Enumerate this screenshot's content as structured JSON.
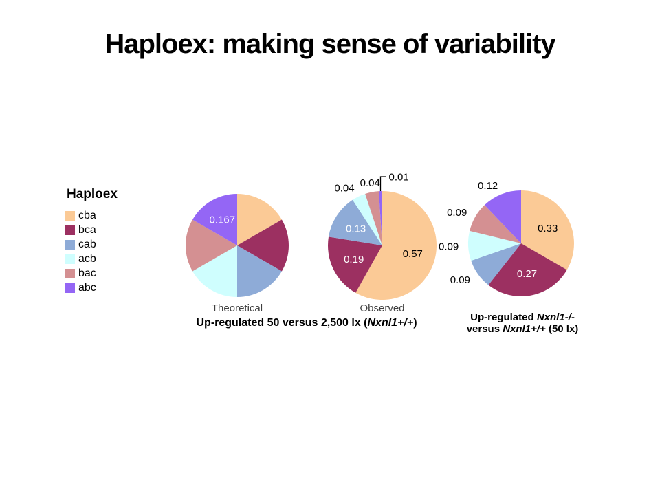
{
  "slide": {
    "title": "Haploex: making sense of variability",
    "background_color": "#ffffff"
  },
  "legend": {
    "title": "Haploex",
    "items": [
      {
        "label": "cba",
        "color": "#FBCA96"
      },
      {
        "label": "bca",
        "color": "#9C3061"
      },
      {
        "label": "cab",
        "color": "#8EABD7"
      },
      {
        "label": "acb",
        "color": "#CFFEFE"
      },
      {
        "label": "bac",
        "color": "#D49092"
      },
      {
        "label": "abc",
        "color": "#9466F5"
      }
    ]
  },
  "captions": {
    "left_group": {
      "text": "Up-regulated 50 versus 2,500 lx (Nxnl1+/+)",
      "segments": [
        {
          "t": "Up-regulated 50 versus 2,500 lx ("
        },
        {
          "t": "Nxnl1+/+",
          "i": true
        },
        {
          "t": ")"
        }
      ]
    },
    "right_group": {
      "text": "Up-regulated Nxnl1-/- versus Nxnl1+/+ (50 lx)",
      "line1_segments": [
        {
          "t": "Up-regulated "
        },
        {
          "t": "Nxnl1-/-",
          "i": true
        }
      ],
      "line2_segments": [
        {
          "t": "versus "
        },
        {
          "t": "Nxnl1+/+",
          "i": true
        },
        {
          "t": " (50 lx)"
        }
      ]
    }
  },
  "chart_data": [
    {
      "type": "pie",
      "name": "theoretical",
      "caption": "Theoretical",
      "start_angle": "12-o'clock, clockwise",
      "categories": [
        "cba",
        "bca",
        "cab",
        "acb",
        "bac",
        "abc"
      ],
      "slices": [
        {
          "category": "cba",
          "value": 0.167,
          "label": ""
        },
        {
          "category": "bca",
          "value": 0.167,
          "label": ""
        },
        {
          "category": "cab",
          "value": 0.167,
          "label": ""
        },
        {
          "category": "acb",
          "value": 0.167,
          "label": ""
        },
        {
          "category": "bac",
          "value": 0.167,
          "label": ""
        },
        {
          "category": "abc",
          "value": 0.167,
          "label": "0.167",
          "placement": "inside",
          "label_color": "#ffffff"
        }
      ]
    },
    {
      "type": "pie",
      "name": "observed",
      "caption": "Observed",
      "start_angle": "12-o'clock, clockwise",
      "categories": [
        "cba",
        "bca",
        "cab",
        "acb",
        "bac",
        "abc"
      ],
      "slices": [
        {
          "category": "cba",
          "value": 0.57,
          "label": "0.57",
          "placement": "inside",
          "label_color": "#000000"
        },
        {
          "category": "bca",
          "value": 0.19,
          "label": "0.19",
          "placement": "inside",
          "label_color": "#ffffff"
        },
        {
          "category": "cab",
          "value": 0.13,
          "label": "0.13",
          "placement": "inside",
          "label_color": "#ffffff"
        },
        {
          "category": "acb",
          "value": 0.04,
          "label": "0.04",
          "placement": "outside",
          "label_color": "#000000"
        },
        {
          "category": "bac",
          "value": 0.04,
          "label": "0.04",
          "placement": "outside",
          "label_color": "#000000"
        },
        {
          "category": "abc",
          "value": 0.01,
          "label": "0.01",
          "placement": "leader",
          "label_color": "#000000"
        }
      ]
    },
    {
      "type": "pie",
      "name": "nxnl1-ko-vs-wt",
      "caption": "",
      "start_angle": "12-o'clock, clockwise",
      "categories": [
        "cba",
        "bca",
        "cab",
        "acb",
        "bac",
        "abc"
      ],
      "slices": [
        {
          "category": "cba",
          "value": 0.33,
          "label": "0.33",
          "placement": "inside",
          "label_color": "#000000"
        },
        {
          "category": "bca",
          "value": 0.27,
          "label": "0.27",
          "placement": "inside",
          "label_color": "#ffffff"
        },
        {
          "category": "cab",
          "value": 0.09,
          "label": "0.09",
          "placement": "outside",
          "label_color": "#000000"
        },
        {
          "category": "acb",
          "value": 0.09,
          "label": "0.09",
          "placement": "outside",
          "label_color": "#000000"
        },
        {
          "category": "bac",
          "value": 0.09,
          "label": "0.09",
          "placement": "outside",
          "label_color": "#000000"
        },
        {
          "category": "abc",
          "value": 0.12,
          "label": "0.12",
          "placement": "outside",
          "label_color": "#000000"
        }
      ]
    }
  ]
}
